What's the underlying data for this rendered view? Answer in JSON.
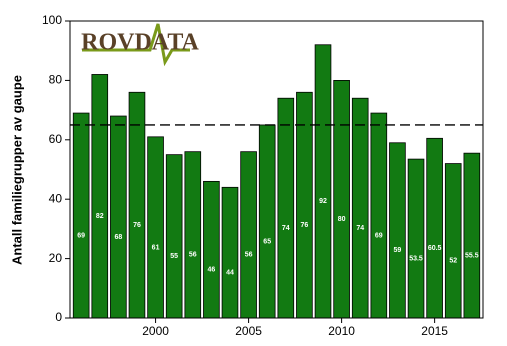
{
  "chart_data": {
    "type": "bar",
    "logo": "ROVDATA",
    "ylabel": "Antall familiegrupper av gaupe",
    "x": [
      1996,
      1997,
      1998,
      1999,
      2000,
      2001,
      2002,
      2003,
      2004,
      2005,
      2006,
      2007,
      2008,
      2009,
      2010,
      2011,
      2012,
      2013,
      2014,
      2015,
      2016,
      2017
    ],
    "values": [
      69,
      82,
      68,
      76,
      61,
      55,
      56,
      46,
      44,
      56,
      65,
      74,
      76,
      92,
      80,
      74,
      69,
      59,
      53.5,
      60.5,
      52,
      55.5
    ],
    "color": "#127a12",
    "xlim": [
      1995.4,
      2017.6
    ],
    "xticks": [
      2000,
      2005,
      2010,
      2015
    ],
    "ylim": [
      0,
      100
    ],
    "yticks": [
      0,
      20,
      40,
      60,
      80,
      100
    ],
    "reference_line": 65
  }
}
